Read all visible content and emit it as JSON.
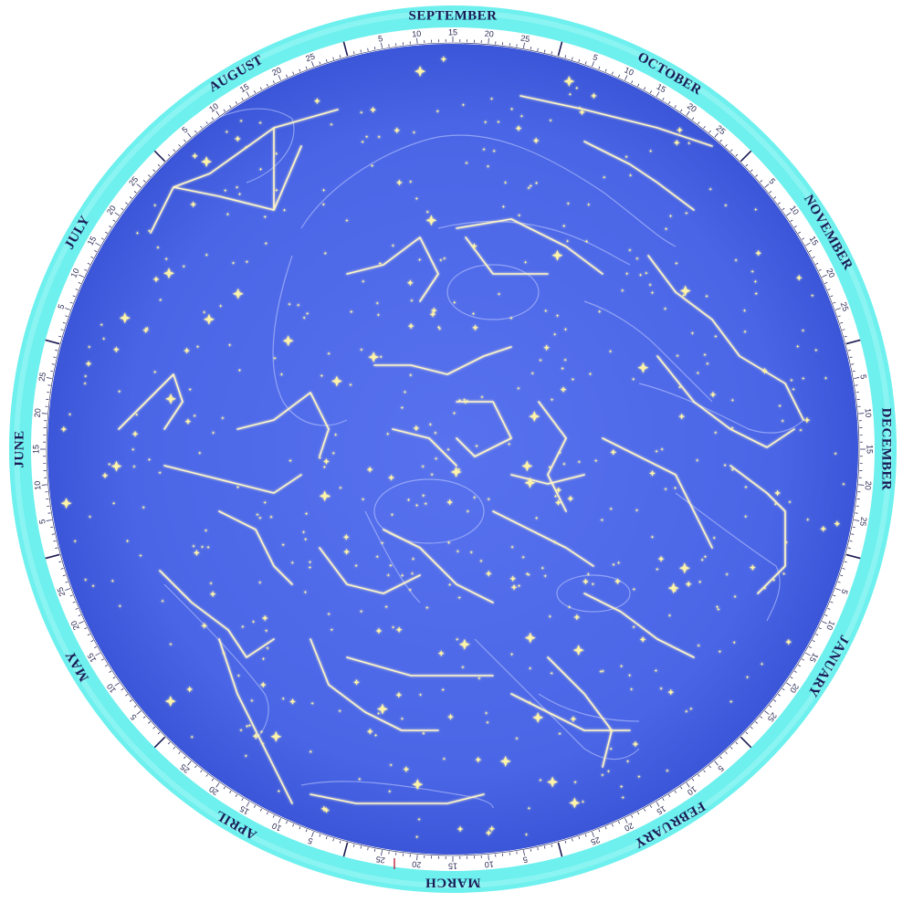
{
  "colors": {
    "outer_ring": "#6df0ee",
    "date_ring": "#ffffff",
    "sky": "#4a66e6",
    "sky_edge": "#3b56d8",
    "stars": "#fff4a8",
    "constellation_lines": "#fff6c8",
    "figures": "#c8d2ff",
    "march_marker": "#c0304a"
  },
  "months": [
    {
      "name": "SEPTEMBER"
    },
    {
      "name": "OCTOBER"
    },
    {
      "name": "NOVEMBER"
    },
    {
      "name": "DECEMBER"
    },
    {
      "name": "JANUARY"
    },
    {
      "name": "FEBRUARY"
    },
    {
      "name": "MARCH"
    },
    {
      "name": "APRIL"
    },
    {
      "name": "MAY"
    },
    {
      "name": "JUNE"
    },
    {
      "name": "JULY"
    },
    {
      "name": "AUGUST"
    }
  ],
  "day_marks": [
    "5",
    "10",
    "15",
    "20",
    "25"
  ]
}
